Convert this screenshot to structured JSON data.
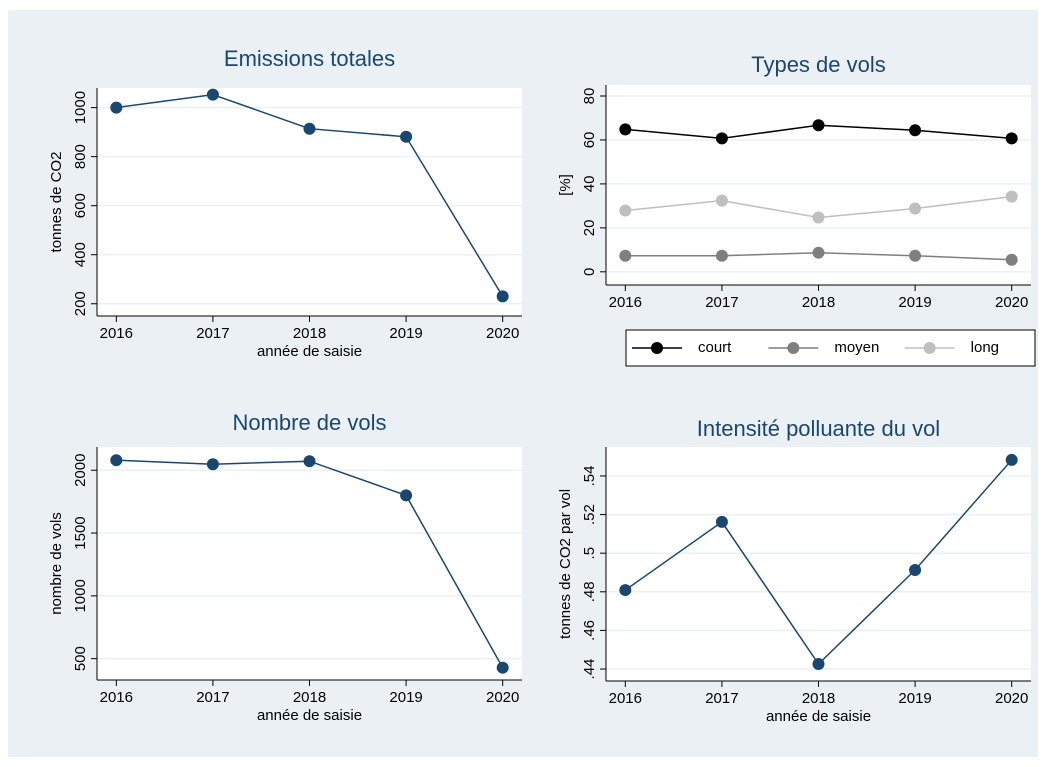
{
  "chart_data": [
    {
      "type": "line",
      "title": "Emissions totales",
      "y_label": "tonnes de CO2",
      "x_label": "année de saisie",
      "x": [
        2016,
        2017,
        2018,
        2019,
        2020
      ],
      "values": [
        1000,
        1053,
        914,
        881,
        230
      ],
      "color": "#1a476f",
      "xlim": [
        2015.8,
        2020.2
      ],
      "xticks": [
        2016,
        2017,
        2018,
        2019,
        2020
      ],
      "ylim": [
        150,
        1080
      ],
      "yticks": [
        200,
        400,
        600,
        800,
        1000
      ],
      "grid": true
    },
    {
      "type": "line",
      "title": "Types de vols",
      "y_label": "[%]",
      "x": [
        2016,
        2017,
        2018,
        2019,
        2020
      ],
      "series": [
        {
          "name": "court",
          "color": "#000000",
          "values": [
            64.8,
            60.7,
            66.7,
            64.4,
            60.7
          ]
        },
        {
          "name": "moyen",
          "color": "#7f7f7f",
          "values": [
            7.3,
            7.3,
            8.7,
            7.3,
            5.5
          ]
        },
        {
          "name": "long",
          "color": "#bfbfbf",
          "values": [
            27.9,
            32.4,
            24.7,
            28.8,
            34.2
          ]
        }
      ],
      "xlim": [
        2015.8,
        2020.2
      ],
      "xticks": [
        2016,
        2017,
        2018,
        2019,
        2020
      ],
      "ylim": [
        -6,
        85
      ],
      "yticks": [
        0,
        20,
        40,
        60,
        80
      ],
      "grid": true,
      "legend": "bottom"
    },
    {
      "type": "line",
      "title": "Nombre de vols",
      "y_label": "nombre de vols",
      "x_label": "année de saisie",
      "x": [
        2016,
        2017,
        2018,
        2019,
        2020
      ],
      "values": [
        2080,
        2048,
        2072,
        1800,
        428
      ],
      "color": "#1a476f",
      "xlim": [
        2015.8,
        2020.2
      ],
      "xticks": [
        2016,
        2017,
        2018,
        2019,
        2020
      ],
      "ylim": [
        330,
        2185
      ],
      "yticks": [
        500,
        1000,
        1500,
        2000
      ],
      "grid": true
    },
    {
      "type": "line",
      "title": "Intensité polluante du vol",
      "y_label": "tonnes de CO2 par vol",
      "x_label": "année de saisie",
      "x": [
        2016,
        2017,
        2018,
        2019,
        2020
      ],
      "values": [
        0.4809,
        0.5162,
        0.4426,
        0.4913,
        0.5483
      ],
      "color": "#1a476f",
      "xlim": [
        2015.8,
        2020.2
      ],
      "xticks": [
        2016,
        2017,
        2018,
        2019,
        2020
      ],
      "ylim": [
        0.4338,
        0.555
      ],
      "yticks": [
        {
          "value": 0.44,
          "label": ".44"
        },
        {
          "value": 0.46,
          "label": ".46"
        },
        {
          "value": 0.48,
          "label": ".48"
        },
        {
          "value": 0.5,
          "label": ".5"
        },
        {
          "value": 0.52,
          "label": ".52"
        },
        {
          "value": 0.54,
          "label": ".54"
        }
      ],
      "grid": true
    }
  ]
}
